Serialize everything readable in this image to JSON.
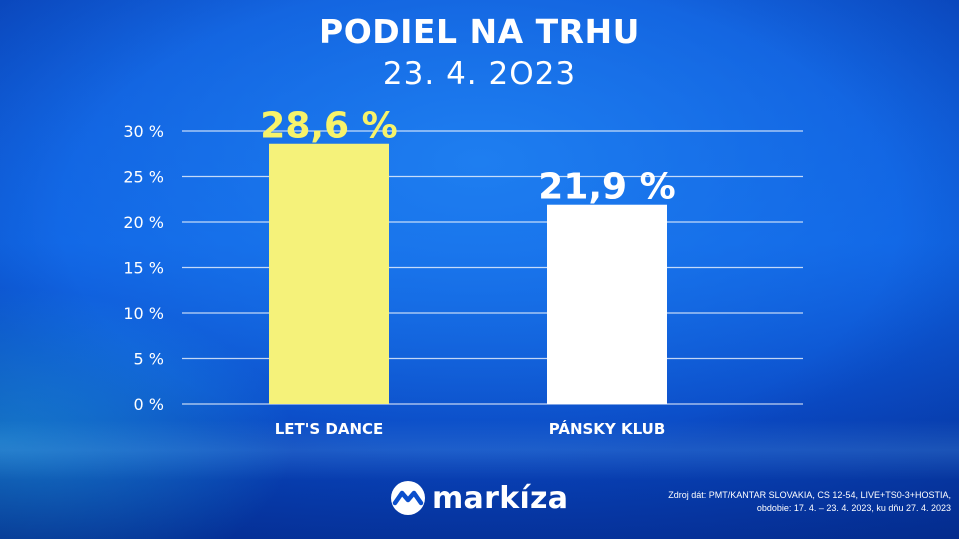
{
  "header": {
    "title": "PODIEL NA TRHU",
    "date": "23. 4. 2O23"
  },
  "chart_data": {
    "type": "bar",
    "categories": [
      "LET'S DANCE",
      "PÁNSKY KLUB"
    ],
    "values": [
      28.6,
      21.9
    ],
    "value_labels": [
      "28,6 %",
      "21,9 %"
    ],
    "bar_colors": [
      "#f5f27a",
      "#ffffff"
    ],
    "label_colors": [
      "#f7f36a",
      "#ffffff"
    ],
    "yticks": [
      0,
      5,
      10,
      15,
      20,
      25,
      30
    ],
    "ytick_labels": [
      "0 %",
      "5 %",
      "10 %",
      "15 %",
      "20 %",
      "25 %",
      "30 %"
    ],
    "ylim": [
      0,
      30
    ],
    "grid": true
  },
  "footer": {
    "logo_icon": "markiza-m-icon",
    "logo_text": "markíza",
    "source_line1": "Zdroj dát: PMT/KANTAR SLOVAKIA, CS 12-54, LIVE+TS0-3+HOSTIA,",
    "source_line2": "obdobie: 17. 4. – 23. 4. 2023, ku dňu 27. 4. 2023"
  }
}
